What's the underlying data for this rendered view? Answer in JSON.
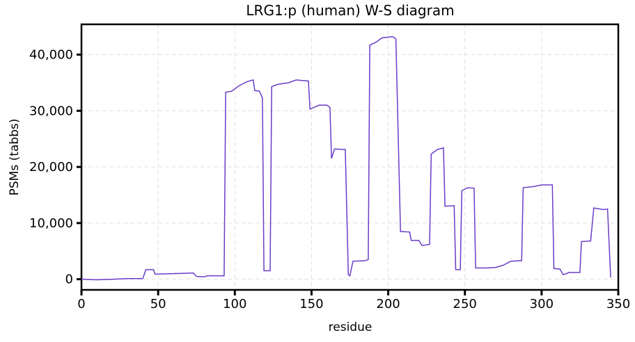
{
  "chart_data": {
    "type": "line",
    "title": "LRG1:p (human) W-S diagram",
    "x_label": "residue",
    "y_label": "PSMs (tabbs)",
    "x": [
      0,
      10,
      20,
      30,
      40,
      42,
      47,
      48,
      60,
      73,
      75,
      80,
      82,
      93,
      94,
      98,
      103,
      108,
      112,
      113,
      116,
      118,
      119,
      123,
      124,
      128,
      135,
      140,
      148,
      149,
      155,
      160,
      162,
      163,
      165,
      172,
      174,
      175,
      177,
      185,
      187,
      188,
      192,
      196,
      203,
      205,
      208,
      214,
      215,
      220,
      222,
      227,
      228,
      232,
      236,
      237,
      243,
      244,
      247,
      248,
      252,
      256,
      257,
      265,
      270,
      275,
      280,
      287,
      288,
      295,
      300,
      307,
      308,
      312,
      314,
      318,
      325,
      326,
      332,
      334,
      340,
      343,
      345
    ],
    "series": [
      {
        "name": "PSMs",
        "color": "#6a3cc8",
        "values": [
          0,
          -100,
          0,
          100,
          100,
          1700,
          1700,
          900,
          1000,
          1100,
          500,
          400,
          600,
          600,
          33300,
          33500,
          34500,
          35200,
          35500,
          33600,
          33500,
          32300,
          1500,
          1500,
          34300,
          34700,
          35000,
          35500,
          35300,
          30300,
          31000,
          31000,
          30600,
          21500,
          23200,
          23100,
          800,
          600,
          3200,
          3300,
          3500,
          41700,
          42200,
          43000,
          43200,
          42800,
          8500,
          8400,
          6900,
          6900,
          6000,
          6200,
          22300,
          23100,
          23400,
          13000,
          13100,
          1700,
          1700,
          15800,
          16300,
          16200,
          2000,
          2000,
          2100,
          2500,
          3200,
          3300,
          16300,
          16500,
          16800,
          16800,
          1900,
          1800,
          800,
          1200,
          1200,
          6700,
          6800,
          12700,
          12400,
          12500,
          300
        ]
      }
    ],
    "xlim": [
      0,
      350
    ],
    "ylim": [
      -1900,
      45400
    ],
    "xticks": [
      0,
      50,
      100,
      150,
      200,
      250,
      300,
      350
    ],
    "yticks": [
      0,
      {
        "value": 10000,
        "label": "10,000"
      },
      {
        "value": 20000,
        "label": "20,000"
      },
      {
        "value": 30000,
        "label": "30,000"
      },
      {
        "value": 40000,
        "label": "40,000"
      }
    ],
    "grid": true
  }
}
